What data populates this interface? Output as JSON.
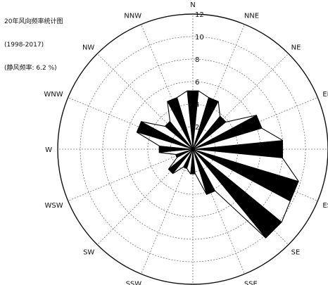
{
  "chart_data": {
    "type": "radar",
    "title": "20年风向频率统计图",
    "subtitle": "(1998-2017)",
    "calm_note": "(静风频率: 6.2 %)",
    "directions": [
      "N",
      "NNE",
      "NE",
      "ENE",
      "E",
      "ESE",
      "SE",
      "SSE",
      "S",
      "SSW",
      "SW",
      "WSW",
      "W",
      "WNW",
      "NW",
      "NNW"
    ],
    "values": [
      5.2,
      4.8,
      3.8,
      6.4,
      8.0,
      9.8,
      10.2,
      4.2,
      2.2,
      1.8,
      2.8,
      1.6,
      3.0,
      5.2,
      3.2,
      4.8
    ],
    "rlim": [
      0,
      12
    ],
    "radial_ticks": [
      2,
      4,
      6,
      8,
      10,
      12
    ],
    "radial_tick_labels": [
      "2",
      "4",
      "6",
      "8",
      "10",
      "12"
    ],
    "grid": true
  }
}
